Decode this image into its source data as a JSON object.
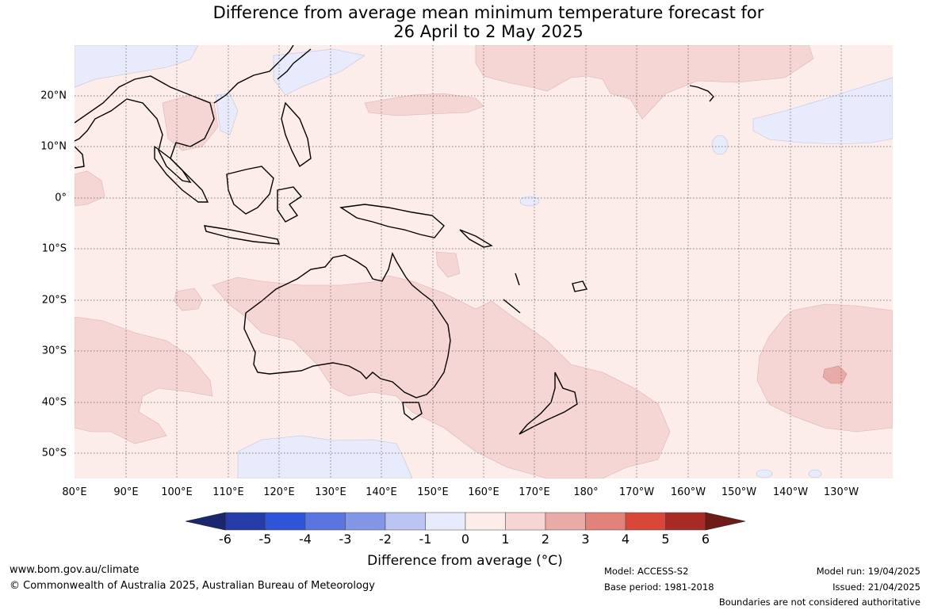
{
  "title": {
    "line1": "Difference from average mean minimum temperature forecast for",
    "line2": "26 April to 2 May 2025"
  },
  "map": {
    "lat_labels": [
      "20°N",
      "10°N",
      "0°",
      "10°S",
      "20°S",
      "30°S",
      "40°S",
      "50°S"
    ],
    "lon_labels": [
      "80°E",
      "90°E",
      "100°E",
      "110°E",
      "120°E",
      "130°E",
      "140°E",
      "150°E",
      "160°E",
      "170°E",
      "180°",
      "170°W",
      "160°W",
      "150°W",
      "140°W",
      "130°W"
    ],
    "anomaly_regions": [
      {
        "description": "Australia and nearby Indian Ocean",
        "class": "0 to 1"
      },
      {
        "description": "Tasman Sea and New Zealand region",
        "class": "1 to 2"
      },
      {
        "description": "Eastern South Pacific near 130°W 35°S",
        "class": "1 to 2, with 2 to 3 core"
      },
      {
        "description": "South of Australia near 50°S",
        "class": "-1 to 0"
      },
      {
        "description": "North Pacific near 140°W 15°N",
        "class": "-1 to 0"
      }
    ]
  },
  "colorbar": {
    "ticks": [
      "-6",
      "-5",
      "-4",
      "-3",
      "-2",
      "-1",
      "0",
      "1",
      "2",
      "3",
      "4",
      "5",
      "6"
    ],
    "colors": [
      "#253ca8",
      "#2f54d8",
      "#5a74e0",
      "#8396e6",
      "#bcc5f2",
      "#e8ebfb",
      "#fcecea",
      "#f6d6d5",
      "#eaaaa5",
      "#e1837a",
      "#d8473a",
      "#a82a24"
    ],
    "extend_low_color": "#18276e",
    "extend_high_color": "#6f1b18",
    "label": "Difference from average (°C)"
  },
  "footer": {
    "website": "www.bom.gov.au/climate",
    "copyright": "© Commonwealth of Australia 2025, Australian Bureau of Meteorology",
    "model": "Model: ACCESS-S2",
    "base_period": "Base period: 1981-2018",
    "model_run": "Model run: 19/04/2025",
    "issued": "Issued: 21/04/2025",
    "disclaimer": "Boundaries are not considered authoritative"
  }
}
